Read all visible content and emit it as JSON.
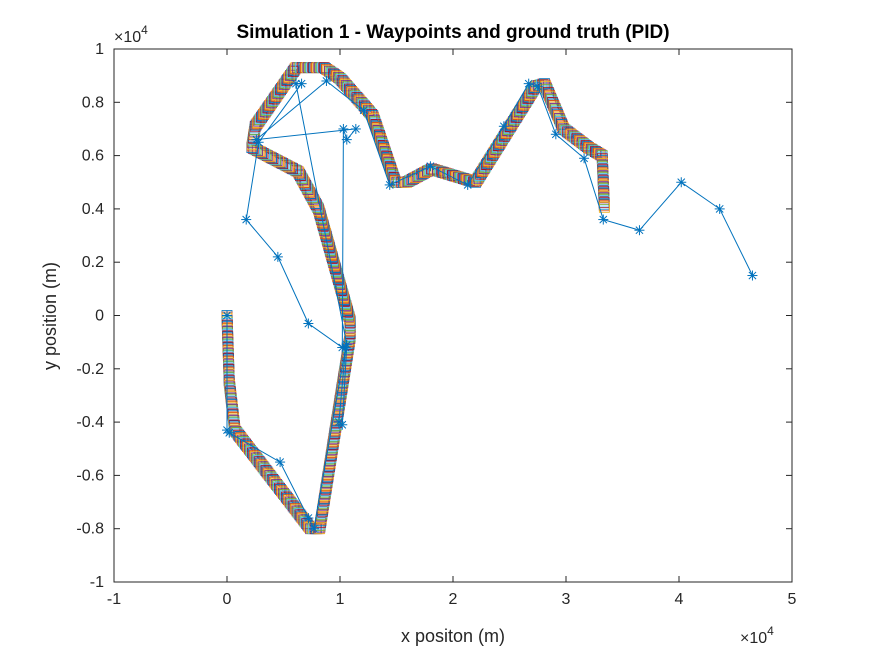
{
  "chart_data": {
    "type": "line",
    "title": "Simulation 1 - Waypoints and ground truth (PID)",
    "xlabel": "x positon (m)",
    "ylabel": "y position (m)",
    "xlim": [
      -10000,
      50000
    ],
    "ylim": [
      -10000,
      10000
    ],
    "x_ticks": [
      -10000,
      0,
      10000,
      20000,
      30000,
      40000,
      50000
    ],
    "x_tick_labels": [
      "-1",
      "0",
      "1",
      "2",
      "3",
      "4",
      "5"
    ],
    "y_ticks": [
      -10000,
      -8000,
      -6000,
      -4000,
      -2000,
      0,
      2000,
      4000,
      6000,
      8000,
      10000
    ],
    "y_tick_labels": [
      "-1",
      "-0.8",
      "-0.6",
      "-0.4",
      "-0.2",
      "0",
      "0.2",
      "0.4",
      "0.6",
      "0.8",
      "1"
    ],
    "x_exponent": {
      "base": "×10",
      "power": "4"
    },
    "y_exponent": {
      "base": "×10",
      "power": "4"
    },
    "grid": false,
    "box": true,
    "series": [
      {
        "type": "line",
        "marker": "asterisk",
        "color": "#0072BD",
        "x": [
          0,
          0,
          200,
          4700,
          7200,
          7700,
          10500,
          9900,
          10200,
          10600,
          6100,
          6600,
          2800,
          1700,
          4500,
          7200,
          10200,
          10300,
          10600,
          11400,
          2600,
          8800,
          12100,
          14400,
          18000,
          21300,
          24500,
          26700,
          27500,
          29100,
          31600,
          33300,
          36500,
          40200,
          43600,
          46500
        ],
        "y": [
          0,
          -4300,
          -4400,
          -5500,
          -7600,
          -8000,
          -1200,
          -4000,
          -4100,
          -1100,
          8700,
          8700,
          6500,
          3600,
          2200,
          -300,
          -1200,
          7000,
          6600,
          7000,
          6600,
          8800,
          7700,
          4900,
          5600,
          4900,
          7100,
          8700,
          8600,
          6800,
          5900,
          3600,
          3200,
          5000,
          4000,
          1500
        ]
      },
      {
        "type": "ground-truth-trajectory",
        "marker": "square",
        "colors": [
          "#0072BD",
          "#D95319",
          "#EDB120",
          "#7E2F8E",
          "#77AC30",
          "#4DBEEE",
          "#A2142F"
        ],
        "x": [
          0,
          200,
          700,
          7400,
          8200,
          10900,
          10900,
          8100,
          6300,
          2200,
          2500,
          6100,
          8600,
          10000,
          12900,
          14900,
          15900,
          18100,
          22000,
          27300,
          28100,
          29800,
          32000,
          33200,
          33300,
          33400
        ],
        "y": [
          0,
          -2500,
          -4300,
          -8000,
          -8000,
          -800,
          -200,
          4000,
          5400,
          6300,
          7100,
          9300,
          9300,
          8900,
          7500,
          5000,
          5000,
          5500,
          5000,
          8600,
          8700,
          7000,
          6300,
          6000,
          5000,
          4000
        ]
      }
    ]
  }
}
